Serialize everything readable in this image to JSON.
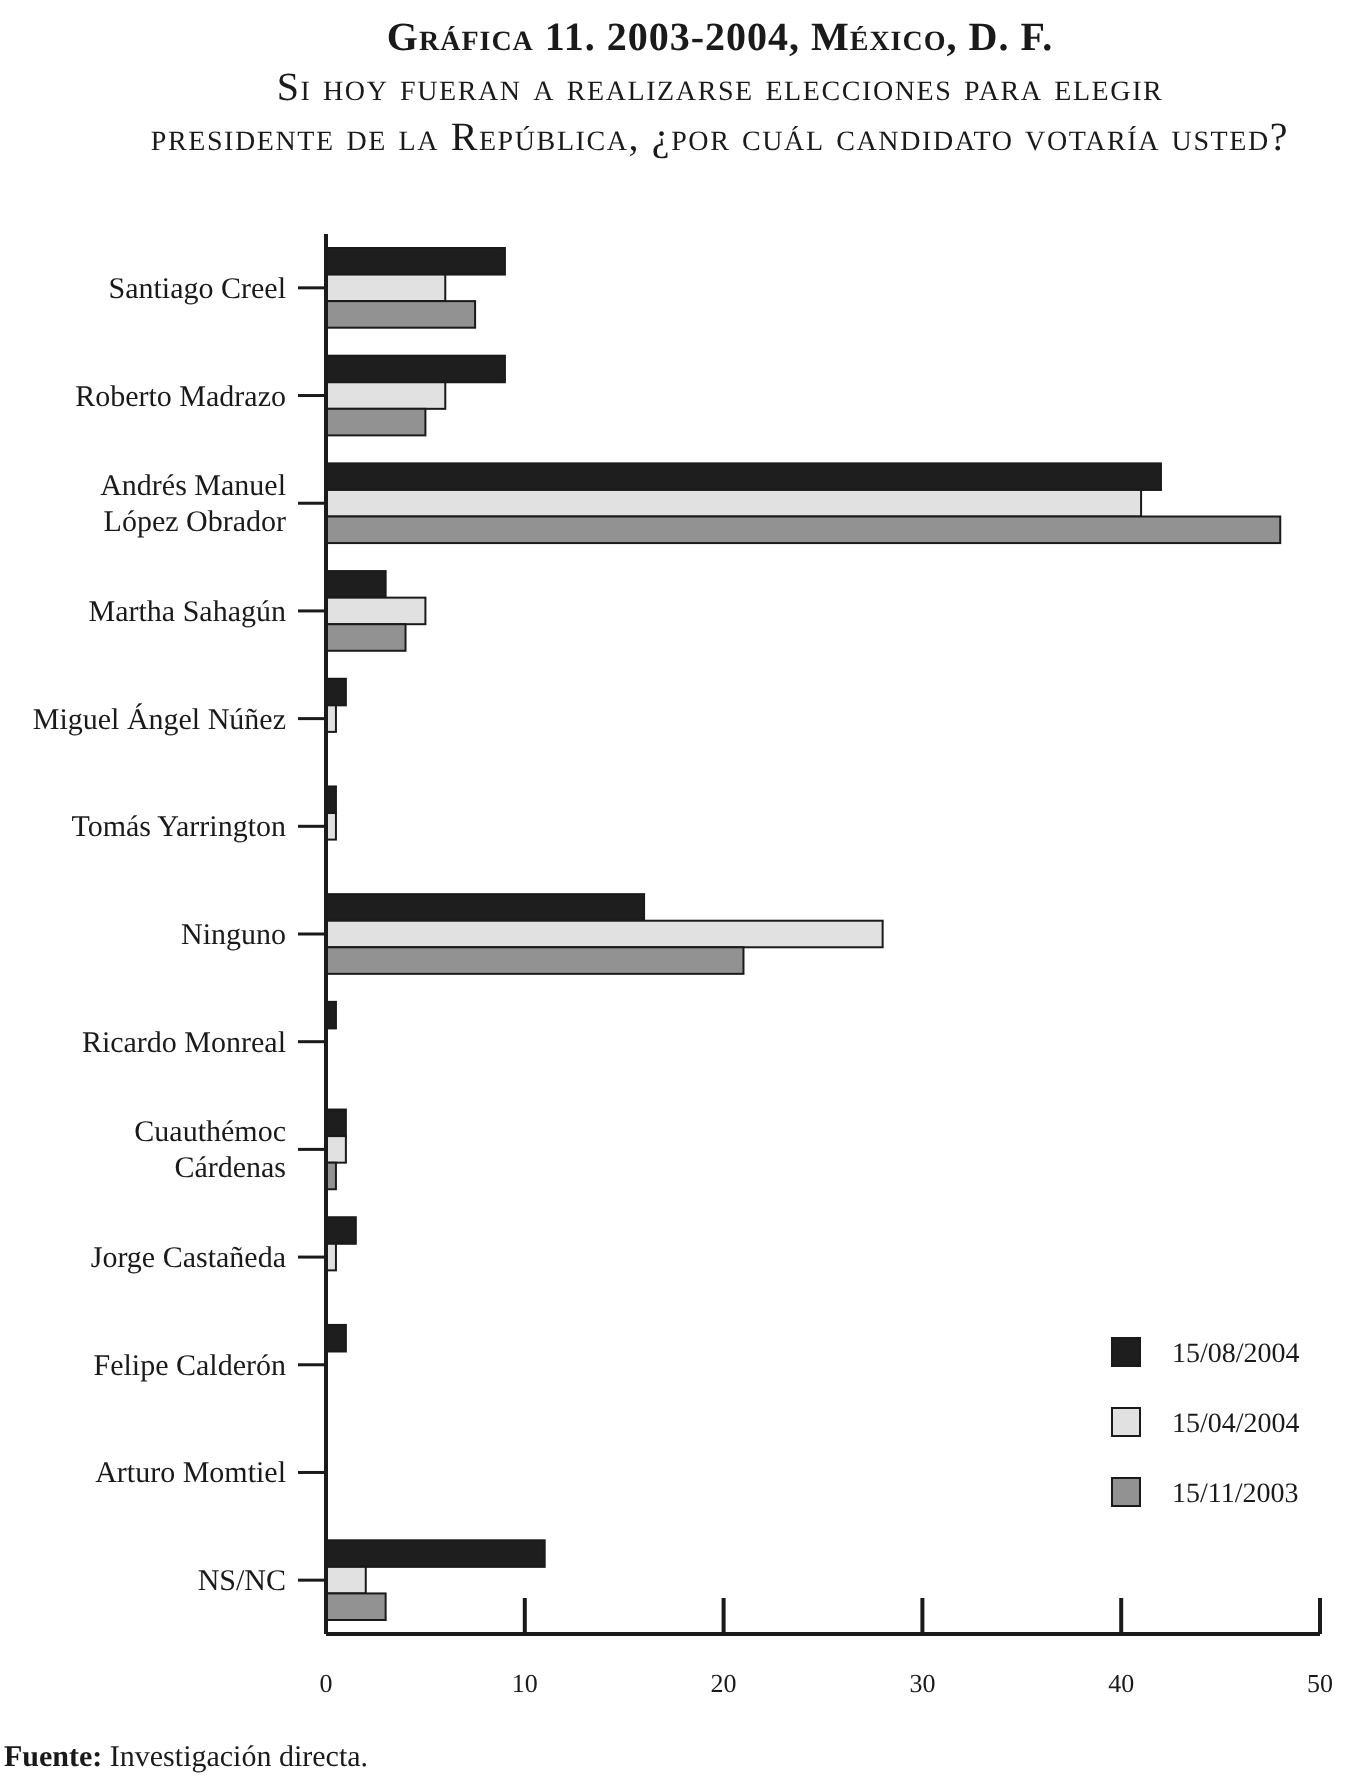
{
  "chart_data": {
    "type": "bar",
    "orientation": "horizontal",
    "title": "Gráfica 11. 2003-2004, México, D. F.",
    "subtitle": "Si hoy fueran a realizarse elecciones para elegir presidente de la República, ¿por cuál candidato votaría usted?",
    "categories": [
      "Santiago Creel",
      "Roberto Madrazo",
      "Andrés Manuel López Obrador",
      "Martha Sahagún",
      "Miguel Ángel Núñez",
      "Tomás Yarrington",
      "Ninguno",
      "Ricardo Monreal",
      "Cuauthémoc Cárdenas",
      "Jorge Castañeda",
      "Felipe Calderón",
      "Arturo Momtiel",
      "NS/NC"
    ],
    "series": [
      {
        "name": "15/08/2004",
        "color": "#1e1e1e",
        "values": [
          9,
          9,
          42,
          3,
          1,
          0.5,
          16,
          0.5,
          1,
          1.5,
          1,
          null,
          11
        ]
      },
      {
        "name": "15/04/2004",
        "color": "#e1e1e1",
        "values": [
          6,
          6,
          41,
          5,
          0.5,
          0.5,
          28,
          null,
          1,
          0.5,
          null,
          null,
          2
        ]
      },
      {
        "name": "15/11/2003",
        "color": "#929292",
        "values": [
          7.5,
          5,
          48,
          4,
          null,
          null,
          21,
          null,
          0.5,
          null,
          null,
          null,
          3
        ]
      }
    ],
    "xlim": [
      0,
      50
    ],
    "xticks": [
      0,
      10,
      20,
      30,
      40,
      50
    ],
    "legend": "bottom right",
    "annotations": [
      "Fuente: Investigación directa."
    ]
  }
}
